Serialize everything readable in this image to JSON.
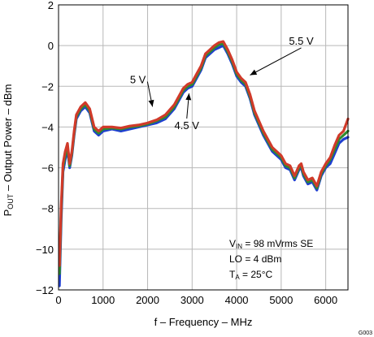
{
  "chart_data": {
    "type": "line",
    "xlabel": "f – Frequency – MHz",
    "ylabel": {
      "main": "P",
      "sub": "OUT",
      "rest": " – Output Power – dBm"
    },
    "xlim": [
      0,
      6500
    ],
    "ylim": [
      -12,
      2
    ],
    "xticks": [
      0,
      1000,
      2000,
      3000,
      4000,
      5000,
      6000
    ],
    "yticks": [
      -12,
      -10,
      -8,
      -6,
      -4,
      -2,
      0,
      2
    ],
    "grid": true,
    "series": [
      {
        "name": "4.5 V",
        "color": "#1f3fd0",
        "x": [
          20,
          60,
          100,
          150,
          200,
          250,
          300,
          350,
          400,
          500,
          600,
          700,
          800,
          900,
          1000,
          1200,
          1400,
          1600,
          1800,
          2000,
          2200,
          2400,
          2600,
          2800,
          2900,
          3000,
          3100,
          3200,
          3300,
          3400,
          3500,
          3600,
          3700,
          3800,
          3900,
          4000,
          4100,
          4200,
          4300,
          4400,
          4600,
          4800,
          5000,
          5100,
          5200,
          5300,
          5400,
          5450,
          5500,
          5600,
          5700,
          5800,
          5900,
          6000,
          6100,
          6200,
          6300,
          6400,
          6500
        ],
        "y": [
          -11.8,
          -8.5,
          -6.2,
          -5.6,
          -5.1,
          -6.0,
          -5.4,
          -4.4,
          -3.6,
          -3.2,
          -3.0,
          -3.3,
          -4.2,
          -4.4,
          -4.2,
          -4.1,
          -4.2,
          -4.1,
          -4.0,
          -3.9,
          -3.8,
          -3.6,
          -3.1,
          -2.3,
          -2.1,
          -2.0,
          -1.6,
          -1.2,
          -0.6,
          -0.4,
          -0.2,
          -0.1,
          0.0,
          -0.4,
          -0.9,
          -1.5,
          -1.8,
          -2.0,
          -2.6,
          -3.4,
          -4.4,
          -5.2,
          -5.6,
          -6.0,
          -6.1,
          -6.6,
          -6.1,
          -6.0,
          -6.4,
          -6.8,
          -6.7,
          -7.1,
          -6.4,
          -6.0,
          -5.8,
          -5.3,
          -4.8,
          -4.6,
          -4.5
        ]
      },
      {
        "name": "5 V",
        "color": "#2e8b2e",
        "x": [
          20,
          60,
          100,
          150,
          200,
          250,
          300,
          350,
          400,
          500,
          600,
          700,
          800,
          900,
          1000,
          1200,
          1400,
          1600,
          1800,
          2000,
          2200,
          2400,
          2600,
          2800,
          2900,
          3000,
          3100,
          3200,
          3300,
          3400,
          3500,
          3600,
          3700,
          3800,
          3900,
          4000,
          4100,
          4200,
          4300,
          4400,
          4600,
          4800,
          5000,
          5100,
          5200,
          5300,
          5400,
          5450,
          5500,
          5600,
          5700,
          5800,
          5900,
          6000,
          6100,
          6200,
          6300,
          6400,
          6500
        ],
        "y": [
          -11.2,
          -8.1,
          -6.0,
          -5.4,
          -5.0,
          -5.9,
          -5.3,
          -4.3,
          -3.5,
          -3.1,
          -2.9,
          -3.2,
          -4.1,
          -4.3,
          -4.1,
          -4.05,
          -4.1,
          -4.0,
          -3.95,
          -3.85,
          -3.7,
          -3.5,
          -3.0,
          -2.2,
          -2.0,
          -1.9,
          -1.5,
          -1.1,
          -0.5,
          -0.3,
          -0.1,
          0.05,
          0.1,
          -0.3,
          -0.8,
          -1.4,
          -1.7,
          -1.9,
          -2.5,
          -3.3,
          -4.3,
          -5.1,
          -5.5,
          -5.9,
          -6.0,
          -6.5,
          -6.0,
          -5.9,
          -6.3,
          -6.7,
          -6.6,
          -7.0,
          -6.3,
          -5.9,
          -5.6,
          -5.1,
          -4.6,
          -4.4,
          -4.2
        ]
      },
      {
        "name": "5.5 V",
        "color": "#d03a2a",
        "x": [
          20,
          60,
          100,
          150,
          200,
          250,
          300,
          350,
          400,
          500,
          600,
          700,
          800,
          900,
          1000,
          1200,
          1400,
          1600,
          1800,
          2000,
          2200,
          2400,
          2600,
          2800,
          2900,
          3000,
          3100,
          3200,
          3300,
          3400,
          3500,
          3600,
          3700,
          3800,
          3900,
          4000,
          4100,
          4200,
          4300,
          4400,
          4600,
          4800,
          5000,
          5100,
          5200,
          5300,
          5400,
          5450,
          5500,
          5600,
          5700,
          5800,
          5900,
          6000,
          6100,
          6200,
          6300,
          6400,
          6500
        ],
        "y": [
          -10.8,
          -7.8,
          -5.8,
          -5.2,
          -4.8,
          -5.8,
          -5.2,
          -4.2,
          -3.4,
          -3.0,
          -2.8,
          -3.1,
          -4.0,
          -4.2,
          -4.0,
          -4.0,
          -4.05,
          -3.95,
          -3.9,
          -3.8,
          -3.65,
          -3.4,
          -2.9,
          -2.1,
          -1.9,
          -1.8,
          -1.4,
          -1.0,
          -0.4,
          -0.2,
          0.0,
          0.15,
          0.2,
          -0.2,
          -0.7,
          -1.3,
          -1.6,
          -1.8,
          -2.4,
          -3.2,
          -4.2,
          -5.0,
          -5.4,
          -5.8,
          -5.9,
          -6.4,
          -5.9,
          -5.8,
          -6.2,
          -6.6,
          -6.5,
          -6.9,
          -6.2,
          -5.8,
          -5.5,
          -4.9,
          -4.4,
          -4.2,
          -3.6
        ]
      }
    ],
    "annotations": [
      {
        "label": "5.5 V",
        "text_at": [
          5450,
          0.05
        ],
        "arrow_to": [
          4300,
          -1.45
        ],
        "anchor": "middle"
      },
      {
        "label": "5 V",
        "text_at": [
          1960,
          -1.85
        ],
        "arrow_to": [
          2110,
          -3.0
        ],
        "anchor": "end"
      },
      {
        "label": "4.5 V",
        "text_at": [
          2880,
          -4.1
        ],
        "arrow_to": [
          2930,
          -2.35
        ],
        "anchor": "middle"
      }
    ],
    "conditions": [
      {
        "main": "V",
        "sub": "IN",
        "rest": " = 98 mVrms SE"
      },
      {
        "main": "LO = 4 dBm",
        "sub": "",
        "rest": ""
      },
      {
        "main": "T",
        "sub": "A",
        "rest": " = 25°C"
      }
    ],
    "figure_id": "G003"
  }
}
